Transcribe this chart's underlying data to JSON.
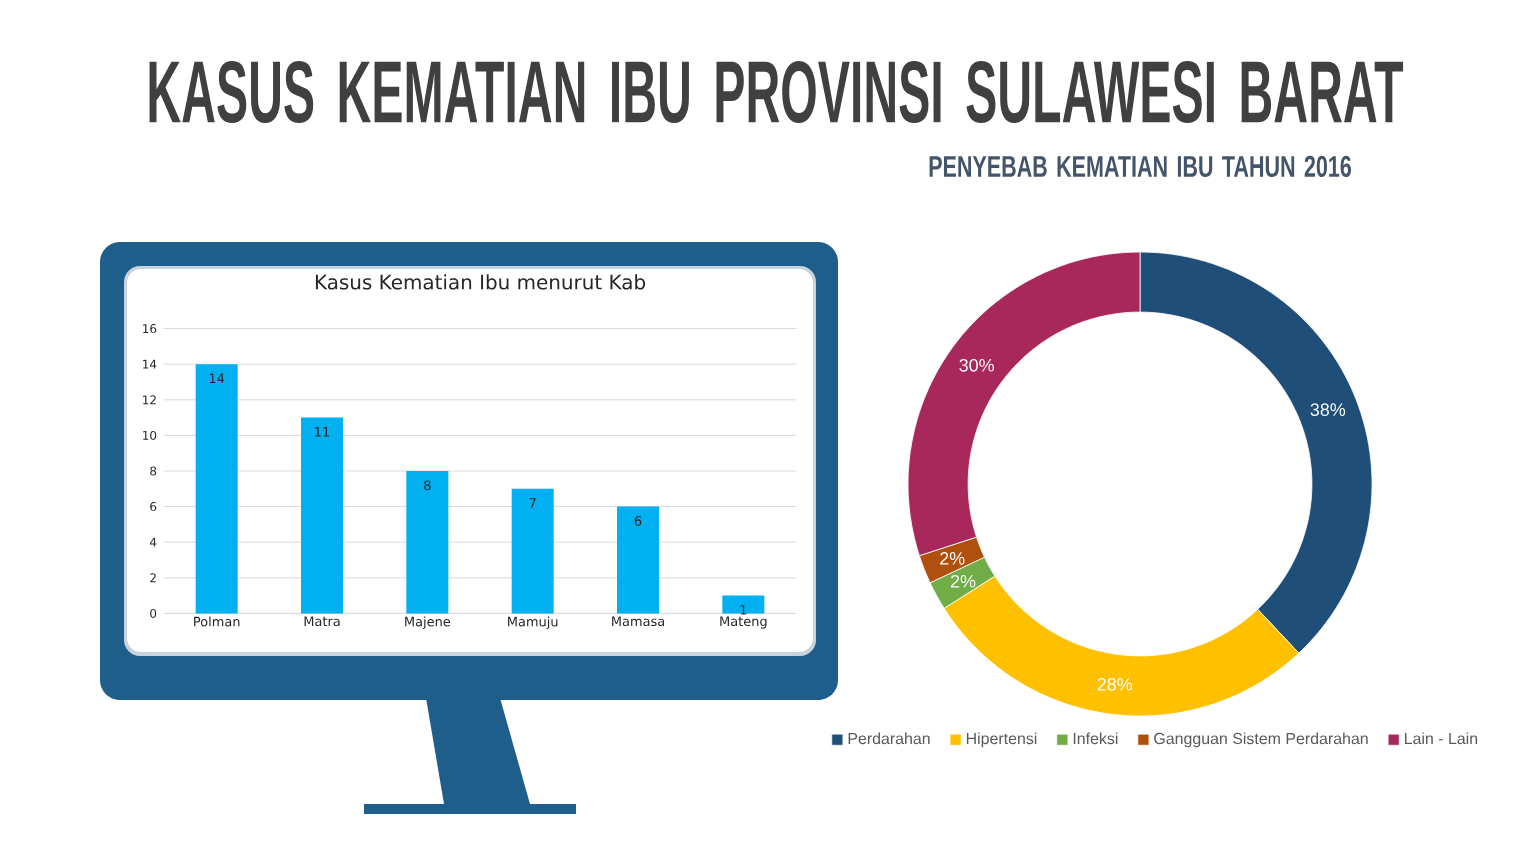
{
  "chart_data": [
    {
      "type": "other",
      "title": "KASUS KEMATIAN IBU PROVINSI SULAWESI BARAT"
    },
    {
      "type": "bar",
      "title": "Kasus Kematian Ibu menurut Kab",
      "categories": [
        "Polman",
        "Matra",
        "Majene",
        "Mamuju",
        "Mamasa",
        "Mateng"
      ],
      "values": [
        14,
        11,
        8,
        7,
        6,
        1
      ],
      "color": "#00b0f0",
      "ylim": [
        0,
        16
      ],
      "yticks": [
        0,
        2,
        4,
        6,
        8,
        10,
        12,
        14,
        16
      ],
      "grid": "y",
      "data_labels": true
    },
    {
      "type": "donut",
      "title": "PENYEBAB KEMATIAN IBU TAHUN 2016",
      "categories": [
        "Perdarahan",
        "Hipertensi",
        "Infeksi",
        "Gangguan Sistem Perdarahan",
        "Lain - Lain"
      ],
      "values": [
        38,
        28,
        2,
        2,
        30
      ],
      "colors": [
        "#1f4e79",
        "#ffc000",
        "#70ad47",
        "#b0500f",
        "#a8285b"
      ],
      "value_labels": [
        "38%",
        "28%",
        "2%",
        "2%",
        "30%"
      ],
      "legend": "bottom"
    }
  ]
}
